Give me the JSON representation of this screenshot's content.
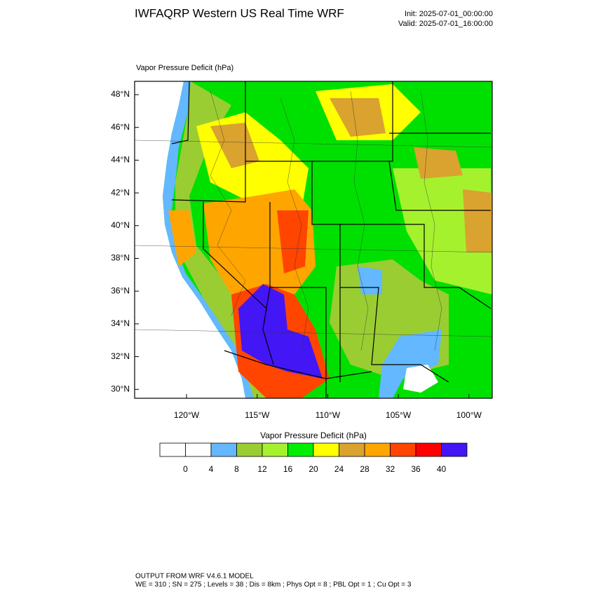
{
  "header": {
    "title": "IWFAQRP Western US Real Time WRF",
    "init": "Init: 2025-07-01_00:00:00",
    "valid": "Valid: 2025-07-01_16:00:00"
  },
  "map": {
    "label": "Vapor Pressure Deficit   (hPa)",
    "lat_labels": [
      "48°N",
      "46°N",
      "44°N",
      "42°N",
      "40°N",
      "38°N",
      "36°N",
      "34°N",
      "32°N",
      "30°N"
    ],
    "lon_labels": [
      "120°W",
      "115°W",
      "110°W",
      "105°W",
      "100°W"
    ]
  },
  "colorbar": {
    "title": "Vapor Pressure Deficit  (hPa)",
    "colors": [
      "#ffffff",
      "#ffffff",
      "#63b8ff",
      "#9acd32",
      "#a6f12e",
      "#00ee00",
      "#ffff00",
      "#daa22e",
      "#ffa500",
      "#ff4500",
      "#ff0000",
      "#4316f5"
    ],
    "labels": [
      0,
      4,
      8,
      12,
      16,
      20,
      24,
      28,
      32,
      36,
      40
    ]
  },
  "footer": {
    "line1": "OUTPUT FROM WRF V4.6.1 MODEL",
    "line2": "WE = 310 ; SN = 275 ; Levels = 38 ; Dis = 8km ; Phys Opt = 8 ; PBL Opt = 1 ; Cu Opt = 3"
  }
}
